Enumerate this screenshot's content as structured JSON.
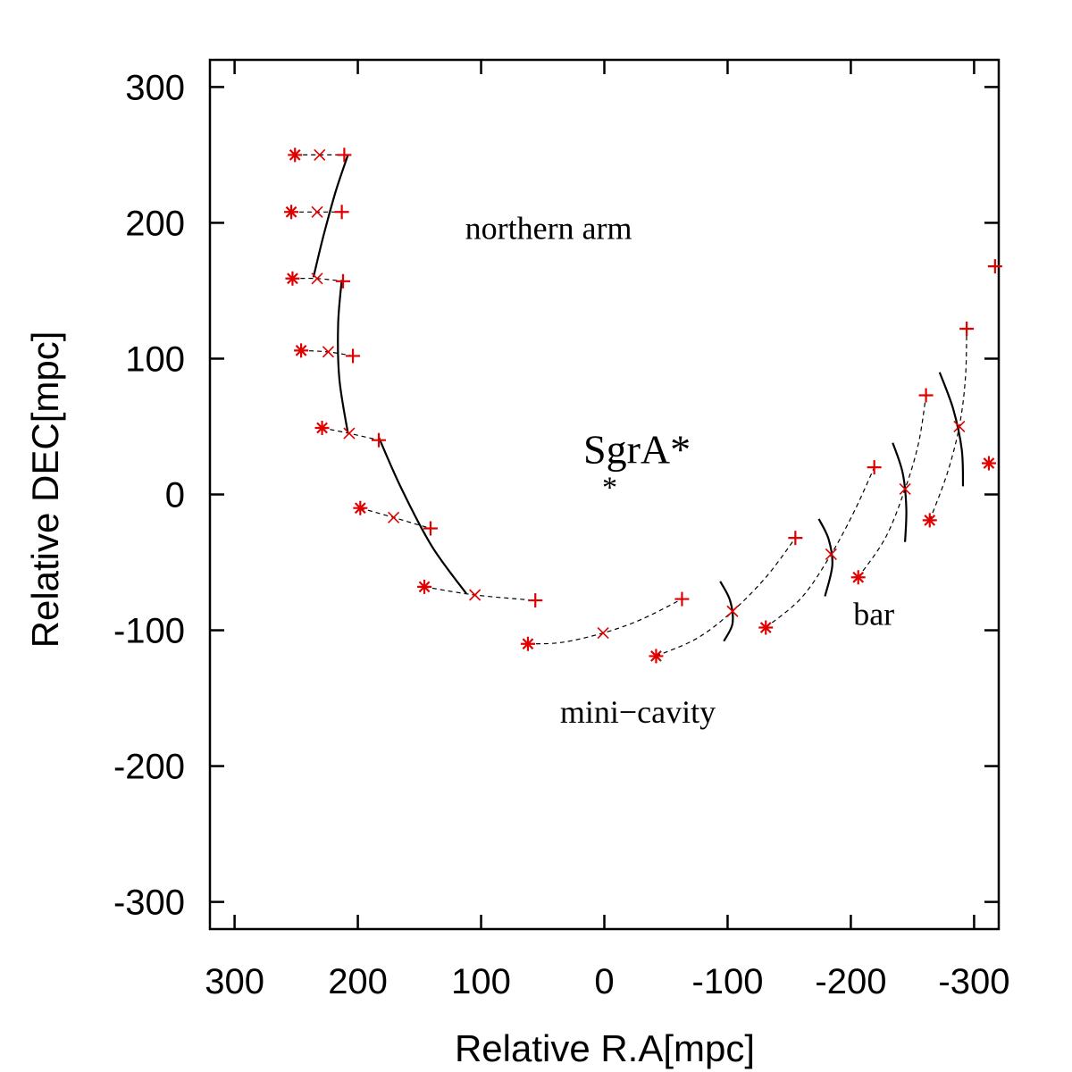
{
  "chart_data": {
    "type": "scatter",
    "title": "",
    "xlabel": "Relative R.A[mpc]",
    "ylabel": "Relative DEC[mpc]",
    "xlim": [
      320,
      -320
    ],
    "ylim": [
      -320,
      320
    ],
    "xticks": [
      300,
      200,
      100,
      0,
      -100,
      -200,
      -300
    ],
    "yticks": [
      300,
      200,
      100,
      0,
      -100,
      -200,
      -300
    ],
    "grid": false,
    "colors": {
      "markers": "#e00000",
      "lines": "#000000",
      "axes": "#000000"
    },
    "annotations": [
      {
        "text": "northern arm",
        "x": 113,
        "y": 188,
        "size": "medium"
      },
      {
        "text": "SgrA*",
        "x": 17,
        "y": 23,
        "size": "large"
      },
      {
        "text": "bar",
        "x": -202,
        "y": -96,
        "size": "medium"
      },
      {
        "text": "mini−cavity",
        "x": 36,
        "y": -168,
        "size": "medium"
      }
    ],
    "sgra_marker": {
      "symbol": "*",
      "x": 0,
      "y": 6
    },
    "series": [
      {
        "name": "asterisk epoch",
        "marker": "asterisk",
        "x": [
          251,
          254,
          253,
          246,
          229,
          198,
          146,
          62,
          -42,
          -131,
          -206,
          -264,
          -312
        ],
        "y": [
          250,
          208,
          159,
          106,
          49,
          -10,
          -68,
          -110,
          -119,
          -98,
          -61,
          -19,
          23
        ]
      },
      {
        "name": "cross epoch",
        "marker": "x",
        "x": [
          231,
          233,
          233,
          224,
          207,
          171,
          105,
          1,
          -104,
          -184,
          -244,
          -288
        ],
        "y": [
          250,
          208,
          159,
          105,
          45,
          -17,
          -74,
          -102,
          -86,
          -44,
          4,
          50
        ]
      },
      {
        "name": "plus epoch",
        "marker": "plus",
        "x": [
          211,
          213,
          212,
          204,
          183,
          141,
          56,
          -63,
          -155,
          -219,
          -261,
          -294,
          -317
        ],
        "y": [
          250,
          208,
          157,
          102,
          40,
          -25,
          -78,
          -77,
          -32,
          20,
          73,
          122,
          168
        ]
      }
    ],
    "trails": [
      {
        "x": [
          251,
          231,
          211
        ],
        "y": [
          250,
          250,
          250
        ]
      },
      {
        "x": [
          254,
          233,
          213
        ],
        "y": [
          208,
          208,
          208
        ]
      },
      {
        "x": [
          253,
          233,
          212
        ],
        "y": [
          159,
          159,
          157
        ]
      },
      {
        "x": [
          246,
          224,
          204
        ],
        "y": [
          106,
          105,
          102
        ]
      },
      {
        "x": [
          229,
          207,
          183
        ],
        "y": [
          49,
          45,
          40
        ]
      },
      {
        "x": [
          198,
          171,
          141
        ],
        "y": [
          -10,
          -17,
          -25
        ]
      },
      {
        "x": [
          146,
          105,
          56
        ],
        "y": [
          -68,
          -74,
          -78
        ]
      },
      {
        "x": [
          62,
          35,
          1,
          -30,
          -63
        ],
        "y": [
          -110,
          -109,
          -102,
          -92,
          -77
        ]
      },
      {
        "x": [
          -42,
          -75,
          -104,
          -132,
          -155
        ],
        "y": [
          -119,
          -106,
          -86,
          -60,
          -32
        ]
      },
      {
        "x": [
          -131,
          -160,
          -184,
          -203,
          -219
        ],
        "y": [
          -98,
          -76,
          -44,
          -12,
          20
        ]
      },
      {
        "x": [
          -206,
          -228,
          -244,
          -255,
          -261
        ],
        "y": [
          -61,
          -32,
          4,
          38,
          73
        ]
      },
      {
        "x": [
          -264,
          -278,
          -288,
          -293,
          -294
        ],
        "y": [
          -19,
          15,
          50,
          86,
          122
        ]
      }
    ],
    "arcs": [
      {
        "x": [
          208,
          218,
          228,
          236
        ],
        "y": [
          250,
          223,
          190,
          160
        ]
      },
      {
        "x": [
          213,
          216,
          215,
          208
        ],
        "y": [
          158,
          125,
          85,
          45
        ]
      },
      {
        "x": [
          183,
          165,
          140,
          112
        ],
        "y": [
          42,
          5,
          -38,
          -73
        ]
      },
      {
        "x": [
          -94,
          -102,
          -104,
          -97
        ],
        "y": [
          -64,
          -78,
          -95,
          -108
        ]
      },
      {
        "x": [
          -174,
          -182,
          -185,
          -179
        ],
        "y": [
          -18,
          -33,
          -52,
          -75
        ]
      },
      {
        "x": [
          -234,
          -242,
          -245,
          -244
        ],
        "y": [
          38,
          16,
          -10,
          -35
        ]
      },
      {
        "x": [
          -272,
          -283,
          -290,
          -291
        ],
        "y": [
          90,
          63,
          33,
          6
        ]
      }
    ]
  }
}
